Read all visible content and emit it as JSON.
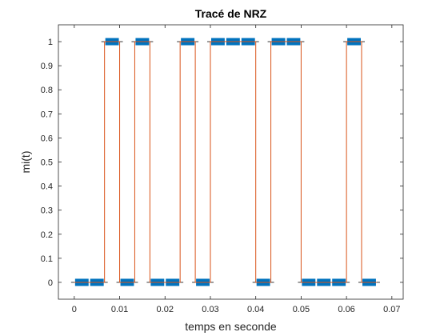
{
  "chart_data": {
    "type": "line",
    "title": "Tracé de NRZ",
    "xlabel": "temps en seconde",
    "ylabel": "mi(t)",
    "xlim": [
      -0.0035,
      0.0725
    ],
    "ylim": [
      -0.07,
      1.07
    ],
    "xticks": [
      0,
      0.01,
      0.02,
      0.03,
      0.04,
      0.05,
      0.06,
      0.07
    ],
    "xtick_labels": [
      "0",
      "0.01",
      "0.02",
      "0.03",
      "0.04",
      "0.05",
      "0.06",
      "0.07"
    ],
    "yticks": [
      0,
      0.1,
      0.2,
      0.3,
      0.4,
      0.5,
      0.6,
      0.7,
      0.8,
      0.9,
      1
    ],
    "ytick_labels": [
      "0",
      "0.1",
      "0.2",
      "0.3",
      "0.4",
      "0.5",
      "0.6",
      "0.7",
      "0.8",
      "0.9",
      "1"
    ],
    "grid": false,
    "bit_duration": 0.00333,
    "bits": [
      0,
      0,
      1,
      0,
      1,
      0,
      0,
      1,
      0,
      1,
      1,
      1,
      0,
      1,
      1,
      0,
      0,
      0,
      1,
      0
    ],
    "series": [
      {
        "style": "thick markers",
        "color": "#0072bd",
        "x_start": [
          0,
          0.00333,
          0.00667,
          0.01,
          0.01333,
          0.01667,
          0.02,
          0.02333,
          0.02667,
          0.03,
          0.03333,
          0.03667,
          0.04,
          0.04333,
          0.04667,
          0.05,
          0.05333,
          0.05667,
          0.06,
          0.06333
        ],
        "x_end": [
          0.00333,
          0.00667,
          0.01,
          0.01333,
          0.01667,
          0.02,
          0.02333,
          0.02667,
          0.03,
          0.03333,
          0.03667,
          0.04,
          0.04333,
          0.04667,
          0.05,
          0.05333,
          0.05667,
          0.06,
          0.06333,
          0.06667
        ],
        "y": [
          0,
          0,
          1,
          0,
          1,
          0,
          0,
          1,
          0,
          1,
          1,
          1,
          0,
          1,
          1,
          0,
          0,
          0,
          1,
          0
        ]
      },
      {
        "style": "thin step line",
        "color": "#d95319",
        "x": [
          0,
          0.00667,
          0.00667,
          0.01,
          0.01,
          0.01333,
          0.01333,
          0.01667,
          0.01667,
          0.02333,
          0.02333,
          0.02667,
          0.02667,
          0.03,
          0.03,
          0.04,
          0.04,
          0.04333,
          0.04333,
          0.05,
          0.05,
          0.06,
          0.06,
          0.06333,
          0.06333,
          0.06667
        ],
        "y": [
          0,
          0,
          1,
          1,
          0,
          0,
          1,
          1,
          0,
          0,
          1,
          1,
          0,
          0,
          1,
          1,
          0,
          0,
          1,
          1,
          0,
          0,
          1,
          1,
          0,
          0
        ]
      }
    ]
  }
}
